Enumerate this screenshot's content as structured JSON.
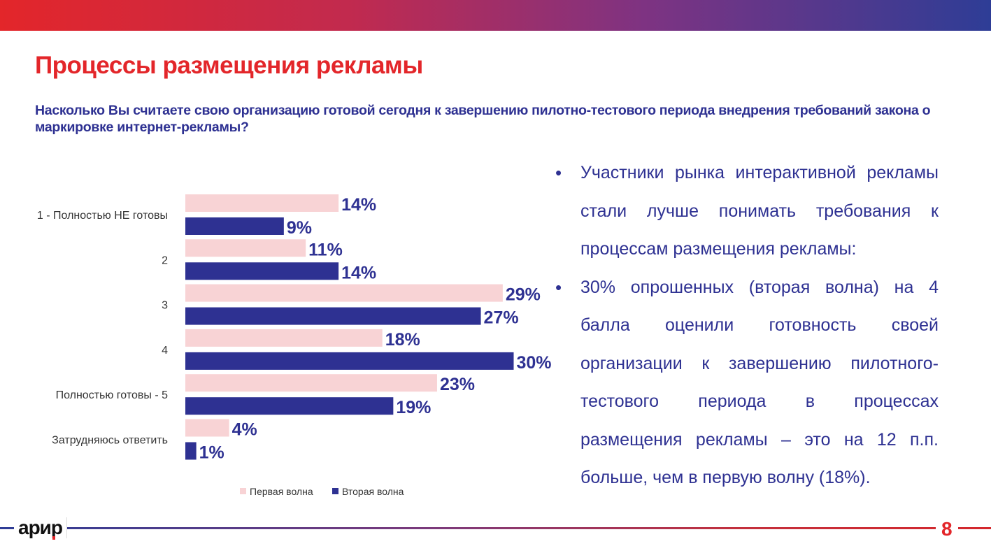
{
  "header": {
    "title": "Процессы размещения рекламы",
    "question": "Насколько Вы считаете свою организацию готовой сегодня к завершению пилотно-тестового периода внедрения требований закона о маркировке интернет-рекламы?"
  },
  "chart_data": {
    "type": "bar",
    "orientation": "horizontal",
    "categories": [
      "1 - Полностью НЕ готовы",
      "2",
      "3",
      "4",
      "Полностью готовы - 5",
      "Затрудняюсь ответить"
    ],
    "series": [
      {
        "name": "Первая волна",
        "color": "#f8d3d5",
        "values": [
          14,
          11,
          29,
          18,
          23,
          4
        ],
        "labels": [
          "14%",
          "11%",
          "29%",
          "18%",
          "23%",
          "4%"
        ]
      },
      {
        "name": "Вторая волна",
        "color": "#2e3192",
        "values": [
          9,
          14,
          27,
          30,
          19,
          1
        ],
        "labels": [
          "9%",
          "14%",
          "27%",
          "30%",
          "19%",
          "1%"
        ]
      }
    ],
    "legend": "bottom",
    "unit": "%",
    "grid": false
  },
  "bullets": [
    "Участники рынка интерактивной рекламы стали лучше понимать требования к процессам размещения рекламы:",
    "30% опрошенных (вторая волна) на 4 балла оценили готовность своей организации к завершению пилотного-тестового периода в процессах размещения рекламы – это на 12 п.п. больше, чем в первую волну (18%)."
  ],
  "footer": {
    "logo": "арир",
    "page": "8"
  }
}
